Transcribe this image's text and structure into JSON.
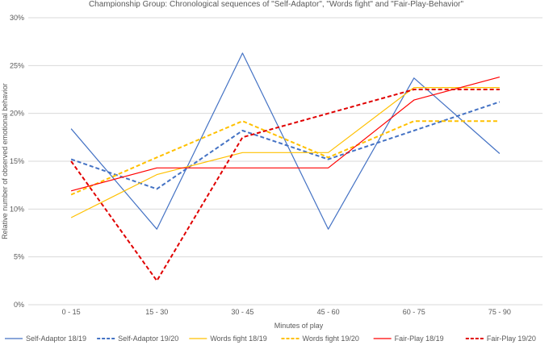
{
  "chart_data": {
    "type": "line",
    "title": "Championship Group: Chronological sequences of \"Self-Adaptor\", \"Words fight\" and \"Fair-Play-Behavior\"",
    "xlabel": "Minutes of play",
    "ylabel": "Relative number of observed emotional behavior",
    "categories": [
      "0 - 15",
      "15 - 30",
      "30 - 45",
      "45 - 60",
      "60 - 75",
      "75 - 90"
    ],
    "ylim": [
      0,
      30
    ],
    "yticks": [
      "0%",
      "5%",
      "10%",
      "15%",
      "20%",
      "25%",
      "30%"
    ],
    "grid": true,
    "legend_position": "bottom",
    "series": [
      {
        "name": "Self-Adaptor 18/19",
        "color": "#4472c4",
        "dash": "solid",
        "values": [
          18.4,
          7.9,
          26.3,
          7.9,
          23.7,
          15.8
        ]
      },
      {
        "name": "Self-Adaptor 19/20",
        "color": "#4472c4",
        "dash": "dashed",
        "values": [
          15.2,
          12.1,
          18.2,
          15.2,
          18.2,
          21.2
        ]
      },
      {
        "name": "Words fight 18/19",
        "color": "#ffc000",
        "dash": "solid",
        "values": [
          9.1,
          13.6,
          15.9,
          15.9,
          22.7,
          22.7
        ]
      },
      {
        "name": "Words fight 19/20",
        "color": "#ffc000",
        "dash": "dashed",
        "values": [
          11.5,
          15.4,
          19.2,
          15.4,
          19.2,
          19.2
        ]
      },
      {
        "name": "Fair-Play 18/19",
        "color": "#ff0000",
        "dash": "solid",
        "values": [
          11.9,
          14.3,
          14.3,
          14.3,
          21.4,
          23.8
        ]
      },
      {
        "name": "Fair-Play 19/20",
        "color": "#e00000",
        "dash": "dashed",
        "values": [
          15.0,
          2.5,
          17.5,
          20.0,
          22.5,
          22.5
        ]
      }
    ]
  }
}
